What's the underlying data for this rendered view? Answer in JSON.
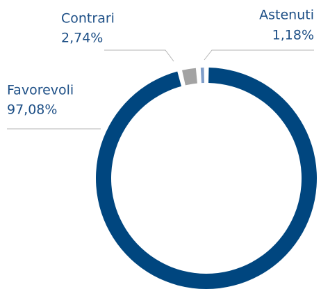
{
  "chart_data": {
    "type": "donut",
    "categories": [
      "Favorevoli",
      "Contrari",
      "Astenuti"
    ],
    "values": [
      97.08,
      2.74,
      1.18
    ],
    "value_labels": [
      "97,08%",
      "2,74%",
      "1,18%"
    ],
    "colors": [
      "#00467f",
      "#a3a3a3",
      "#7f9dc9"
    ]
  }
}
